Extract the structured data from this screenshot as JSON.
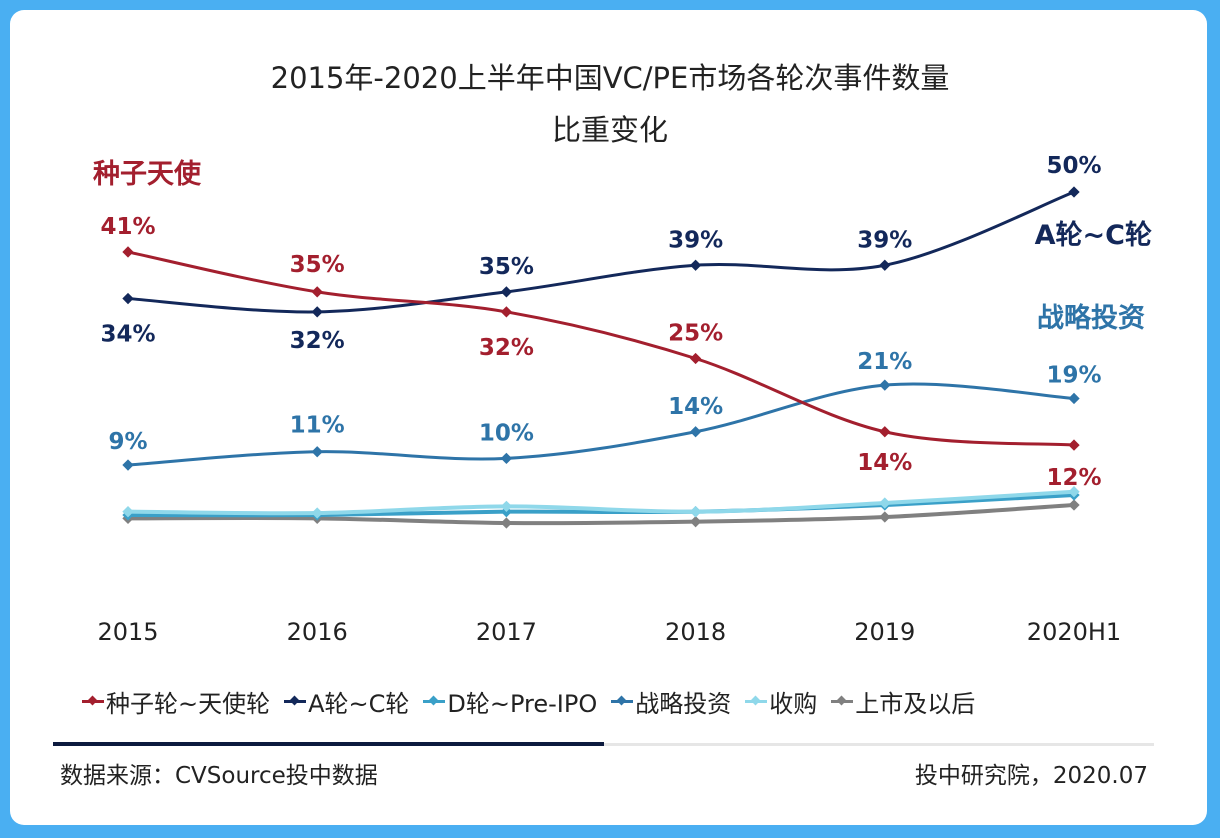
{
  "footer": {
    "source": "数据来源：CVSource投中数据",
    "org": "投中研究院，2020.07"
  },
  "chart_data": {
    "type": "line",
    "title": "2015年-2020上半年中国VC/PE市场各轮次事件数量",
    "subtitle": "比重变化",
    "xlabel": "",
    "ylabel": "",
    "ylim": [
      0,
      55
    ],
    "grid": false,
    "legend_position": "bottom",
    "categories": [
      "2015",
      "2016",
      "2017",
      "2018",
      "2019",
      "2020H1"
    ],
    "series": [
      {
        "name": "种子轮~天使轮",
        "callout": "种子天使",
        "color": "#a31f2e",
        "values": [
          41,
          35,
          32,
          25,
          14,
          12
        ],
        "labels": [
          "41%",
          "35%",
          "32%",
          "25%",
          "14%",
          "12%"
        ]
      },
      {
        "name": "A轮~C轮",
        "callout": "A轮~C轮",
        "color": "#13285a",
        "values": [
          34,
          32,
          35,
          39,
          39,
          50
        ],
        "labels": [
          "34%",
          "32%",
          "35%",
          "39%",
          "39%",
          "50%"
        ]
      },
      {
        "name": "D轮~Pre-IPO",
        "callout": "",
        "color": "#3aa0c8",
        "values": [
          1.5,
          1.5,
          2,
          2,
          3,
          4.5
        ],
        "labels": []
      },
      {
        "name": "战略投资",
        "callout": "战略投资",
        "color": "#2e74a8",
        "values": [
          9,
          11,
          10,
          14,
          21,
          19
        ],
        "labels": [
          "9%",
          "11%",
          "10%",
          "14%",
          "21%",
          "19%"
        ]
      },
      {
        "name": "收购",
        "callout": "",
        "color": "#8fd8ea",
        "values": [
          2,
          1.8,
          2.8,
          2,
          3.3,
          5
        ],
        "labels": []
      },
      {
        "name": "上市及以后",
        "callout": "",
        "color": "#808080",
        "values": [
          1,
          1,
          0.3,
          0.5,
          1.2,
          3
        ],
        "labels": []
      }
    ]
  }
}
